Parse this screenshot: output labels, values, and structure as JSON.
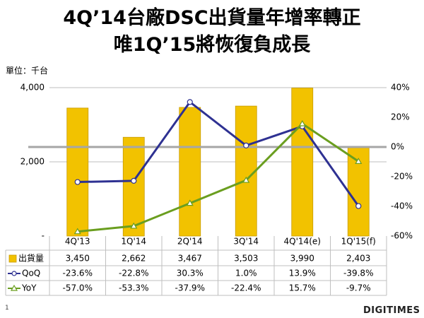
{
  "title_line1": "4Q’14台廠DSC出貨量年增率轉正",
  "title_line2": "唯1Q’15將恢復負成長",
  "unit_label": "單位：千台",
  "page_number": "1",
  "logo_text": "DIGITIMES",
  "chart_data": {
    "type": "bar",
    "categories": [
      "4Q'13",
      "1Q'14",
      "2Q'14",
      "3Q'14",
      "4Q'14(e)",
      "1Q'15(f)"
    ],
    "series": [
      {
        "name": "出貨量",
        "type": "bar",
        "axis": "left",
        "values": [
          3450,
          2662,
          3467,
          3503,
          3990,
          2403
        ],
        "labels": [
          "3,450",
          "2,662",
          "3,467",
          "3,503",
          "3,990",
          "2,403"
        ],
        "color": "#F2C200"
      },
      {
        "name": "QoQ",
        "type": "line",
        "axis": "right",
        "marker": "circle",
        "values": [
          -23.6,
          -22.8,
          30.3,
          1.0,
          13.9,
          -39.8
        ],
        "labels": [
          "-23.6%",
          "-22.8%",
          "30.3%",
          "1.0%",
          "13.9%",
          "-39.8%"
        ],
        "color": "#2E3192"
      },
      {
        "name": "YoY",
        "type": "line",
        "axis": "right",
        "marker": "triangle",
        "values": [
          -57.0,
          -53.3,
          -37.9,
          -22.4,
          15.7,
          -9.7
        ],
        "labels": [
          "-57.0%",
          "-53.3%",
          "-37.9%",
          "-22.4%",
          "15.7%",
          "-9.7%"
        ],
        "color": "#6A9E1F"
      }
    ],
    "left_axis": {
      "ylim": [
        0,
        4000
      ],
      "ticks": [
        0,
        2000,
        4000
      ],
      "tick_labels": [
        "-",
        "2,000",
        "4,000"
      ]
    },
    "right_axis": {
      "ylim": [
        -60,
        40
      ],
      "ticks": [
        -60,
        -40,
        -20,
        0,
        20,
        40
      ],
      "tick_labels": [
        "-60%",
        "-40%",
        "-20%",
        "0%",
        "20%",
        "40%"
      ]
    },
    "zero_line_color": "#A6A6A6",
    "grid": true,
    "legend": "data-table"
  }
}
